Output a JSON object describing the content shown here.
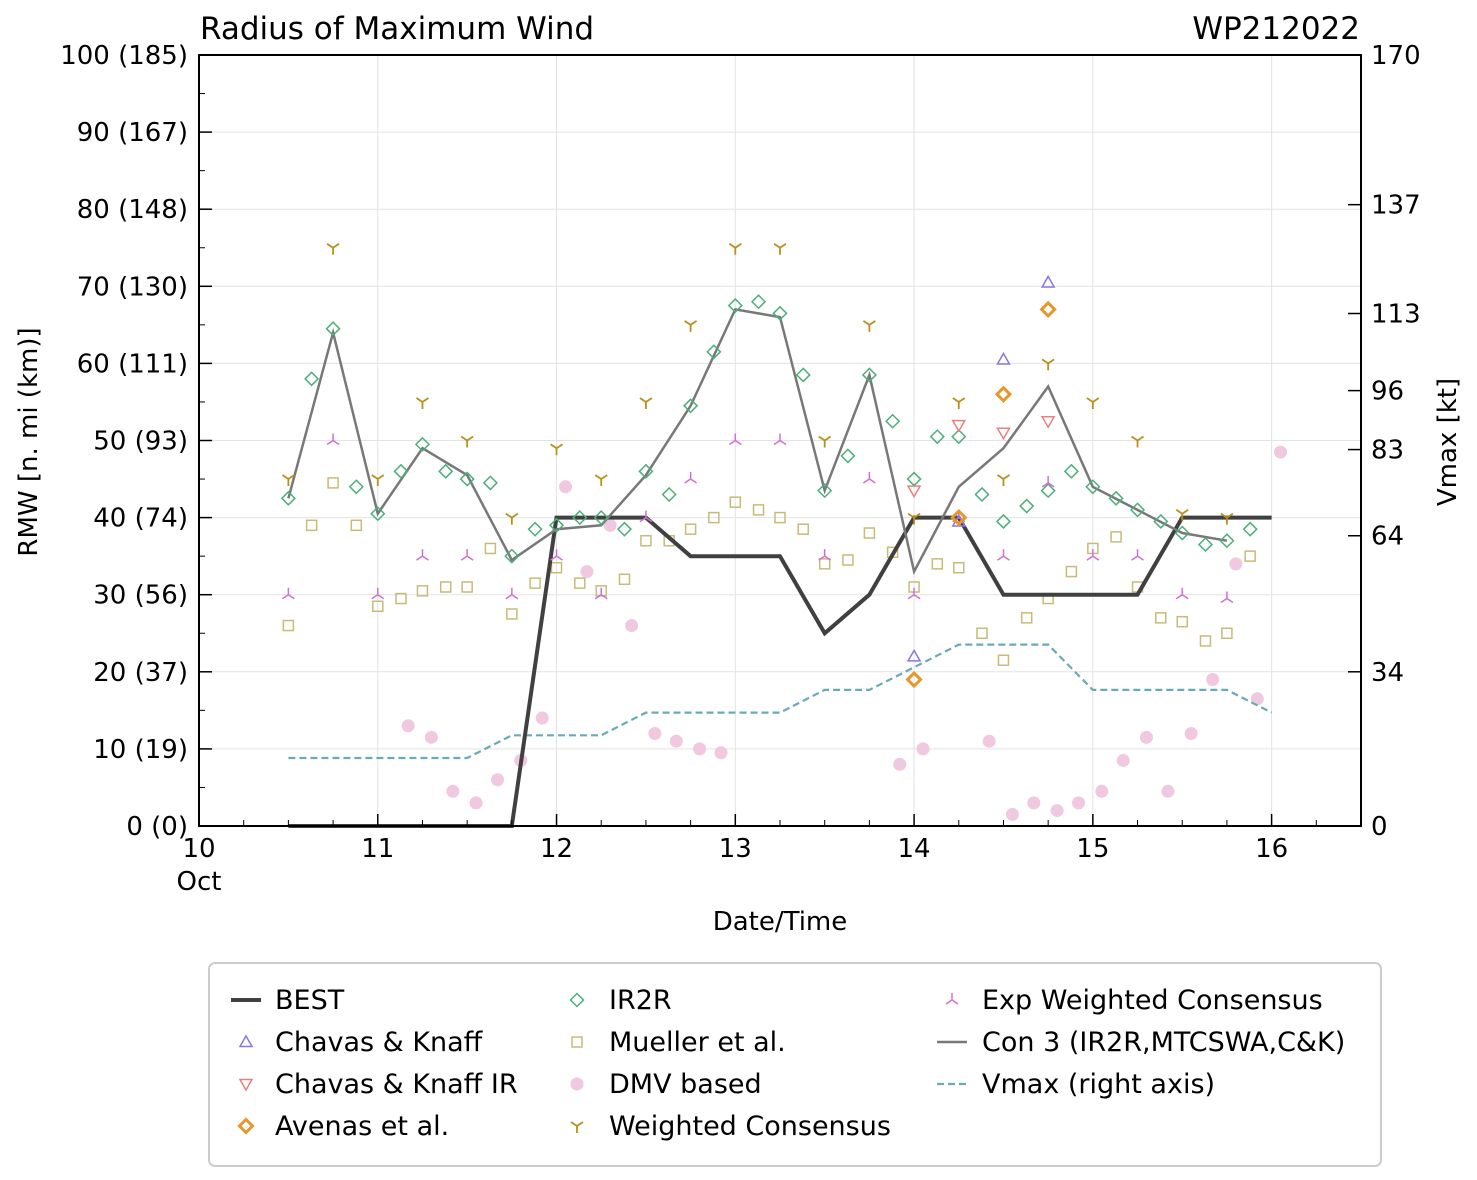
{
  "chart_data": {
    "type": "line",
    "title": "Radius of Maximum Wind",
    "storm_id": "WP212022",
    "xlabel": "Date/Time",
    "ylabel": "RMW [n. mi (km)]",
    "ylabel_right": "Vmax [kt]",
    "xlim": [
      10,
      16.5
    ],
    "ylim": [
      0,
      100
    ],
    "x_ticks": [
      10,
      11,
      12,
      13,
      14,
      15,
      16
    ],
    "x_tick_labels": [
      "10",
      "11",
      "12",
      "13",
      "14",
      "15",
      "16"
    ],
    "x_sublabel": "Oct",
    "y_ticks": [
      0,
      10,
      20,
      30,
      40,
      50,
      60,
      70,
      80,
      90,
      100
    ],
    "y_tick_labels": [
      "0 (0)",
      "10 (19)",
      "20 (37)",
      "30 (56)",
      "40 (74)",
      "50 (93)",
      "60 (111)",
      "70 (130)",
      "80 (148)",
      "90 (167)",
      "100 (185)"
    ],
    "right_ticks": [
      0,
      34,
      64,
      83,
      96,
      113,
      137,
      170
    ],
    "right_ylim": [
      0,
      170
    ],
    "legend": {
      "best": "BEST",
      "ck": "Chavas & Knaff",
      "ckir": "Chavas & Knaff IR",
      "avenas": "Avenas et al.",
      "ir2r": "IR2R",
      "mueller": "Mueller et al.",
      "dmv": "DMV based",
      "wc": "Weighted Consensus",
      "ewc": "Exp Weighted Consensus",
      "con3": "Con 3 (IR2R,MTCSWA,C&K)",
      "vmax": "Vmax (right axis)"
    },
    "colors": {
      "best": "#404040",
      "ck": "#8878e0",
      "ckir": "#e88080",
      "avenas": "#e8962a",
      "ir2r": "#4caf7a",
      "mueller": "#c8bb78",
      "dmv": "#f0c8e0",
      "wc": "#b8901e",
      "ewc": "#d070d0",
      "con3": "#787878",
      "vmax": "#6aaab8"
    },
    "series": [
      {
        "key": "best",
        "name": "BEST",
        "x": [
          10.5,
          11.75,
          12,
          12.25,
          12.5,
          12.75,
          13,
          13.25,
          13.5,
          13.75,
          14,
          14.25,
          14.5,
          14.75,
          15,
          15.25,
          15.5,
          15.75,
          16
        ],
        "y": [
          0,
          0,
          40,
          40,
          40,
          35,
          35,
          35,
          25,
          30,
          40,
          40,
          30,
          30,
          30,
          30,
          40,
          40,
          40
        ]
      },
      {
        "key": "ck",
        "name": "Chavas & Knaff",
        "x": [
          14,
          14.25,
          14.5,
          14.75
        ],
        "y": [
          22,
          39.5,
          60.5,
          70.5
        ]
      },
      {
        "key": "ckir",
        "name": "Chavas & Knaff IR",
        "x": [
          14,
          14.25,
          14.5,
          14.75
        ],
        "y": [
          43.5,
          52,
          51,
          52.5
        ]
      },
      {
        "key": "avenas",
        "name": "Avenas et al.",
        "x": [
          14,
          14.25,
          14.5,
          14.75
        ],
        "y": [
          19,
          40,
          56,
          67
        ]
      },
      {
        "key": "ir2r",
        "name": "IR2R",
        "x": [
          10.5,
          10.63,
          10.75,
          10.88,
          11,
          11.13,
          11.25,
          11.38,
          11.5,
          11.63,
          11.75,
          11.88,
          12,
          12.13,
          12.25,
          12.38,
          12.5,
          12.63,
          12.75,
          12.88,
          13,
          13.13,
          13.25,
          13.38,
          13.5,
          13.63,
          13.75,
          13.88,
          14,
          14.13,
          14.25,
          14.38,
          14.5,
          14.63,
          14.75,
          14.88,
          15,
          15.13,
          15.25,
          15.38,
          15.5,
          15.63,
          15.75,
          15.88
        ],
        "y": [
          42.5,
          58,
          64.5,
          44,
          40.5,
          46,
          49.5,
          46,
          45,
          44.5,
          35,
          38.5,
          39,
          40,
          40,
          38.5,
          46,
          43,
          54.5,
          61.5,
          67.5,
          68,
          66.5,
          58.5,
          43.5,
          48,
          58.5,
          52.5,
          45,
          50.5,
          50.5,
          43,
          39.5,
          41.5,
          43.5,
          46,
          44,
          42.5,
          41,
          39.5,
          38,
          36.5,
          37,
          38.5
        ]
      },
      {
        "key": "mueller",
        "name": "Mueller et al.",
        "x": [
          10.5,
          10.63,
          10.75,
          10.88,
          11,
          11.13,
          11.25,
          11.38,
          11.5,
          11.63,
          11.75,
          11.88,
          12,
          12.13,
          12.25,
          12.38,
          12.5,
          12.63,
          12.75,
          12.88,
          13,
          13.13,
          13.25,
          13.38,
          13.5,
          13.63,
          13.75,
          13.88,
          14,
          14.13,
          14.25,
          14.38,
          14.5,
          14.63,
          14.75,
          14.88,
          15,
          15.13,
          15.25,
          15.38,
          15.5,
          15.63,
          15.75,
          15.88
        ],
        "y": [
          26,
          39,
          44.5,
          39,
          28.5,
          29.5,
          30.5,
          31,
          31,
          36,
          27.5,
          31.5,
          33.5,
          31.5,
          30.5,
          32,
          37,
          37,
          38.5,
          40,
          42,
          41,
          40,
          38.5,
          34,
          34.5,
          38,
          35.5,
          31,
          34,
          33.5,
          25,
          21.5,
          27,
          29.5,
          33,
          36,
          37.5,
          31,
          27,
          26.5,
          24,
          25,
          35
        ]
      },
      {
        "key": "dmv",
        "name": "DMV based",
        "x": [
          11.17,
          11.3,
          11.42,
          11.55,
          11.67,
          11.8,
          11.92,
          12.05,
          12.17,
          12.3,
          12.42,
          12.55,
          12.67,
          12.8,
          12.92,
          13.92,
          14.05,
          14.42,
          14.55,
          14.67,
          14.8,
          14.92,
          15.05,
          15.17,
          15.3,
          15.42,
          15.55,
          15.67,
          15.8,
          15.92,
          16.05
        ],
        "y": [
          13,
          11.5,
          4.5,
          3,
          6,
          8.5,
          14,
          44,
          33,
          39,
          26,
          12,
          11,
          10,
          9.5,
          8,
          10,
          11,
          1.5,
          3,
          2,
          3,
          4.5,
          8.5,
          11.5,
          4.5,
          12,
          19,
          34,
          16.5,
          48.5
        ]
      },
      {
        "key": "wc",
        "name": "Weighted Consensus",
        "x": [
          10.5,
          10.75,
          11,
          11.25,
          11.5,
          11.75,
          12,
          12.25,
          12.5,
          12.75,
          13,
          13.25,
          13.5,
          13.75,
          14,
          14.25,
          14.5,
          14.75,
          15,
          15.25,
          15.5,
          15.75
        ],
        "y": [
          45,
          75,
          45,
          55,
          50,
          40,
          49,
          45,
          55,
          65,
          75,
          75,
          50,
          65,
          40,
          55,
          45,
          60,
          55,
          50,
          40.5,
          40
        ]
      },
      {
        "key": "ewc",
        "name": "Exp Weighted Consensus",
        "x": [
          10.5,
          10.75,
          11,
          11.25,
          11.5,
          11.75,
          12,
          12.25,
          12.5,
          12.75,
          13,
          13.25,
          13.5,
          13.75,
          14,
          14.25,
          14.5,
          14.75,
          15,
          15.25,
          15.5,
          15.75
        ],
        "y": [
          30,
          50,
          30,
          35,
          35,
          30,
          35,
          30,
          40,
          45,
          50,
          50,
          35,
          45,
          30,
          40,
          35,
          44.5,
          35,
          35,
          30,
          29.5
        ]
      },
      {
        "key": "con3",
        "name": "Con 3 (IR2R,MTCSWA,C&K)",
        "x": [
          10.5,
          10.75,
          11,
          11.25,
          11.5,
          11.75,
          12,
          12.25,
          12.5,
          12.75,
          13,
          13.25,
          13.5,
          13.75,
          14,
          14.25,
          14.5,
          14.75,
          15,
          15.25,
          15.5,
          15.75
        ],
        "y": [
          42.5,
          64,
          40.5,
          49,
          45.5,
          34.5,
          38.5,
          39,
          45.5,
          54.5,
          67,
          66,
          43.5,
          58.5,
          33,
          44,
          49,
          57,
          44,
          41,
          38,
          37
        ]
      },
      {
        "key": "vmax",
        "name": "Vmax (right axis)",
        "axis": "right",
        "x": [
          10.5,
          11,
          11.5,
          11.75,
          12,
          12.25,
          12.5,
          13,
          13.25,
          13.5,
          13.75,
          14,
          14.25,
          14.5,
          14.75,
          15,
          15.25,
          15.5,
          15.75,
          16
        ],
        "y": [
          15,
          15,
          15,
          20,
          20,
          20,
          25,
          25,
          25,
          30,
          30,
          35,
          40,
          40,
          40,
          30,
          30,
          30,
          30,
          25
        ]
      }
    ]
  }
}
